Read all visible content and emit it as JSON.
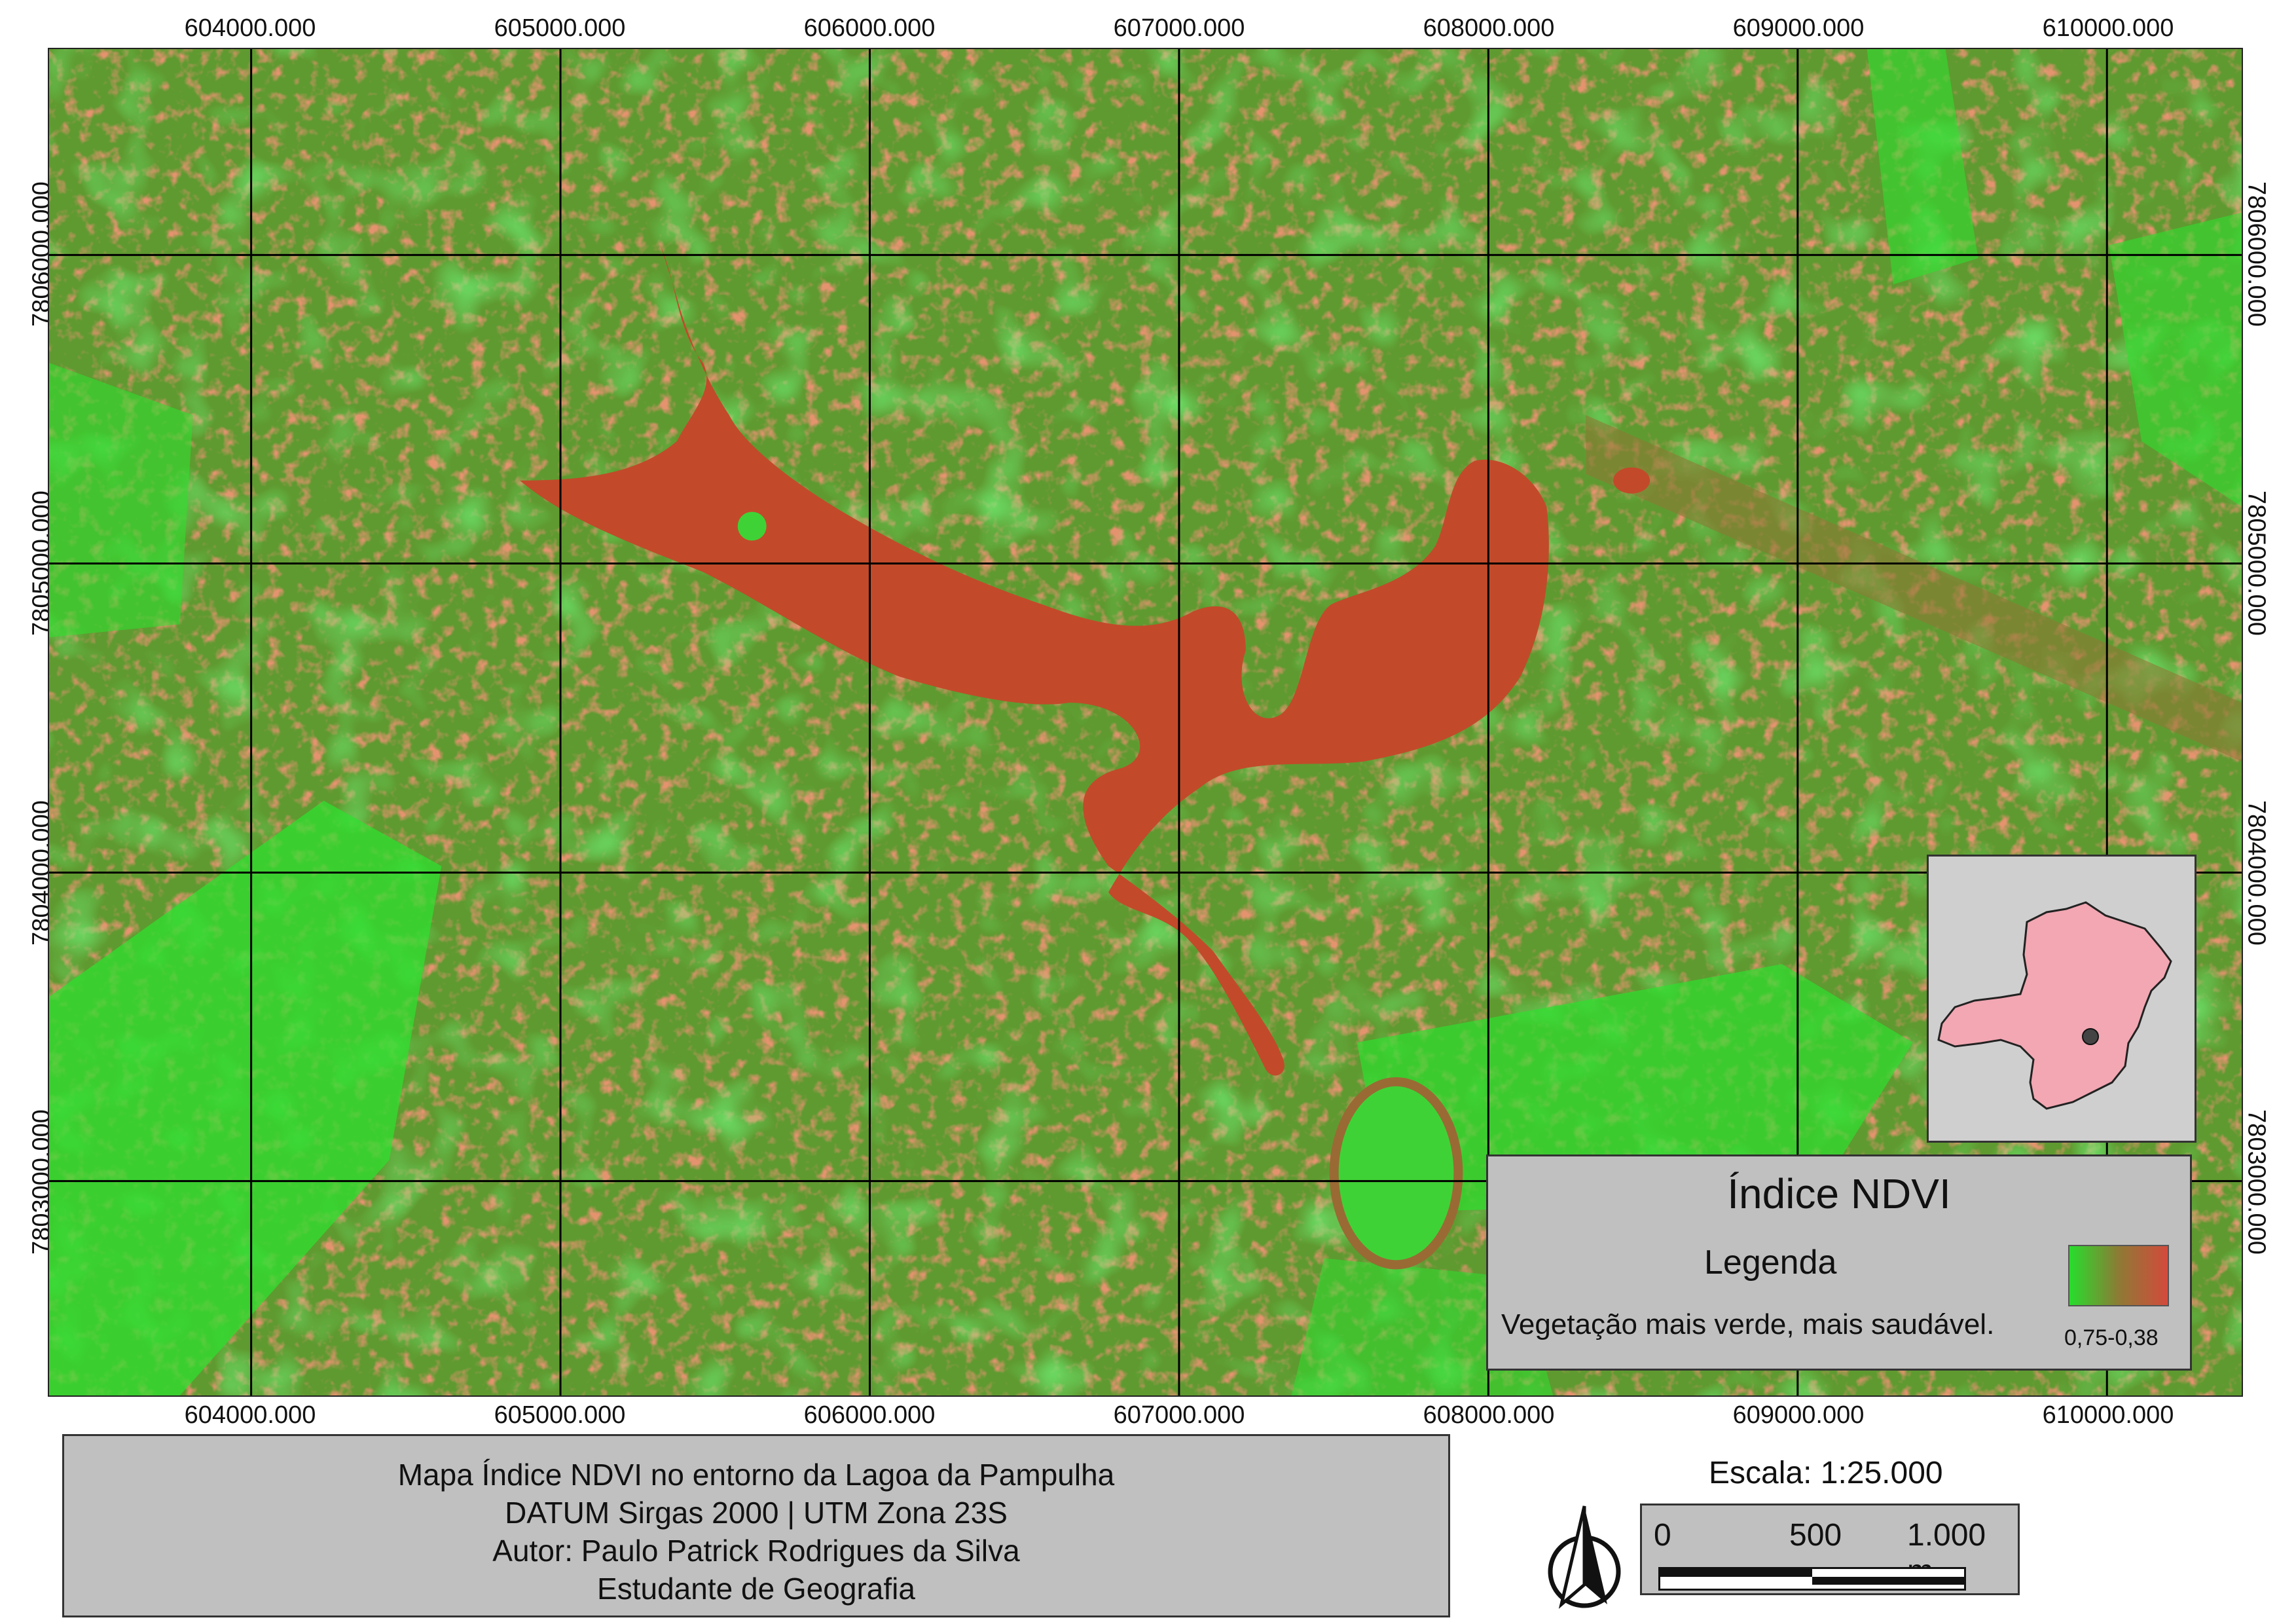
{
  "map": {
    "x_ticks": [
      "604000.000",
      "605000.000",
      "606000.000",
      "607000.000",
      "608000.000",
      "609000.000",
      "610000.000"
    ],
    "y_ticks": [
      "7806000.000",
      "7805000.000",
      "7804000.000",
      "7803000.000"
    ],
    "colors": {
      "vegetation": "#27dd2d",
      "mixed": "#8e7a35",
      "water_urban": "#c84a2a"
    }
  },
  "legend": {
    "title": "Índice NDVI",
    "subtitle": "Legenda",
    "description": "Vegetação mais verde, mais saudável.",
    "range": "0,75-0,38"
  },
  "title_block": {
    "line1": "Mapa Índice NDVI no entorno da Lagoa da Pampulha",
    "line2": "DATUM Sirgas 2000 | UTM Zona 23S",
    "line3": "Autor: Paulo Patrick Rodrigues da Silva",
    "line4": "Estudante de Geografia"
  },
  "scale": {
    "label": "Escala: 1:25.000",
    "tick_0": "0",
    "tick_500": "500",
    "tick_1000": "1.000 m"
  },
  "inset": {
    "state_color": "#f2a7b2",
    "marker_color": "#444444"
  }
}
